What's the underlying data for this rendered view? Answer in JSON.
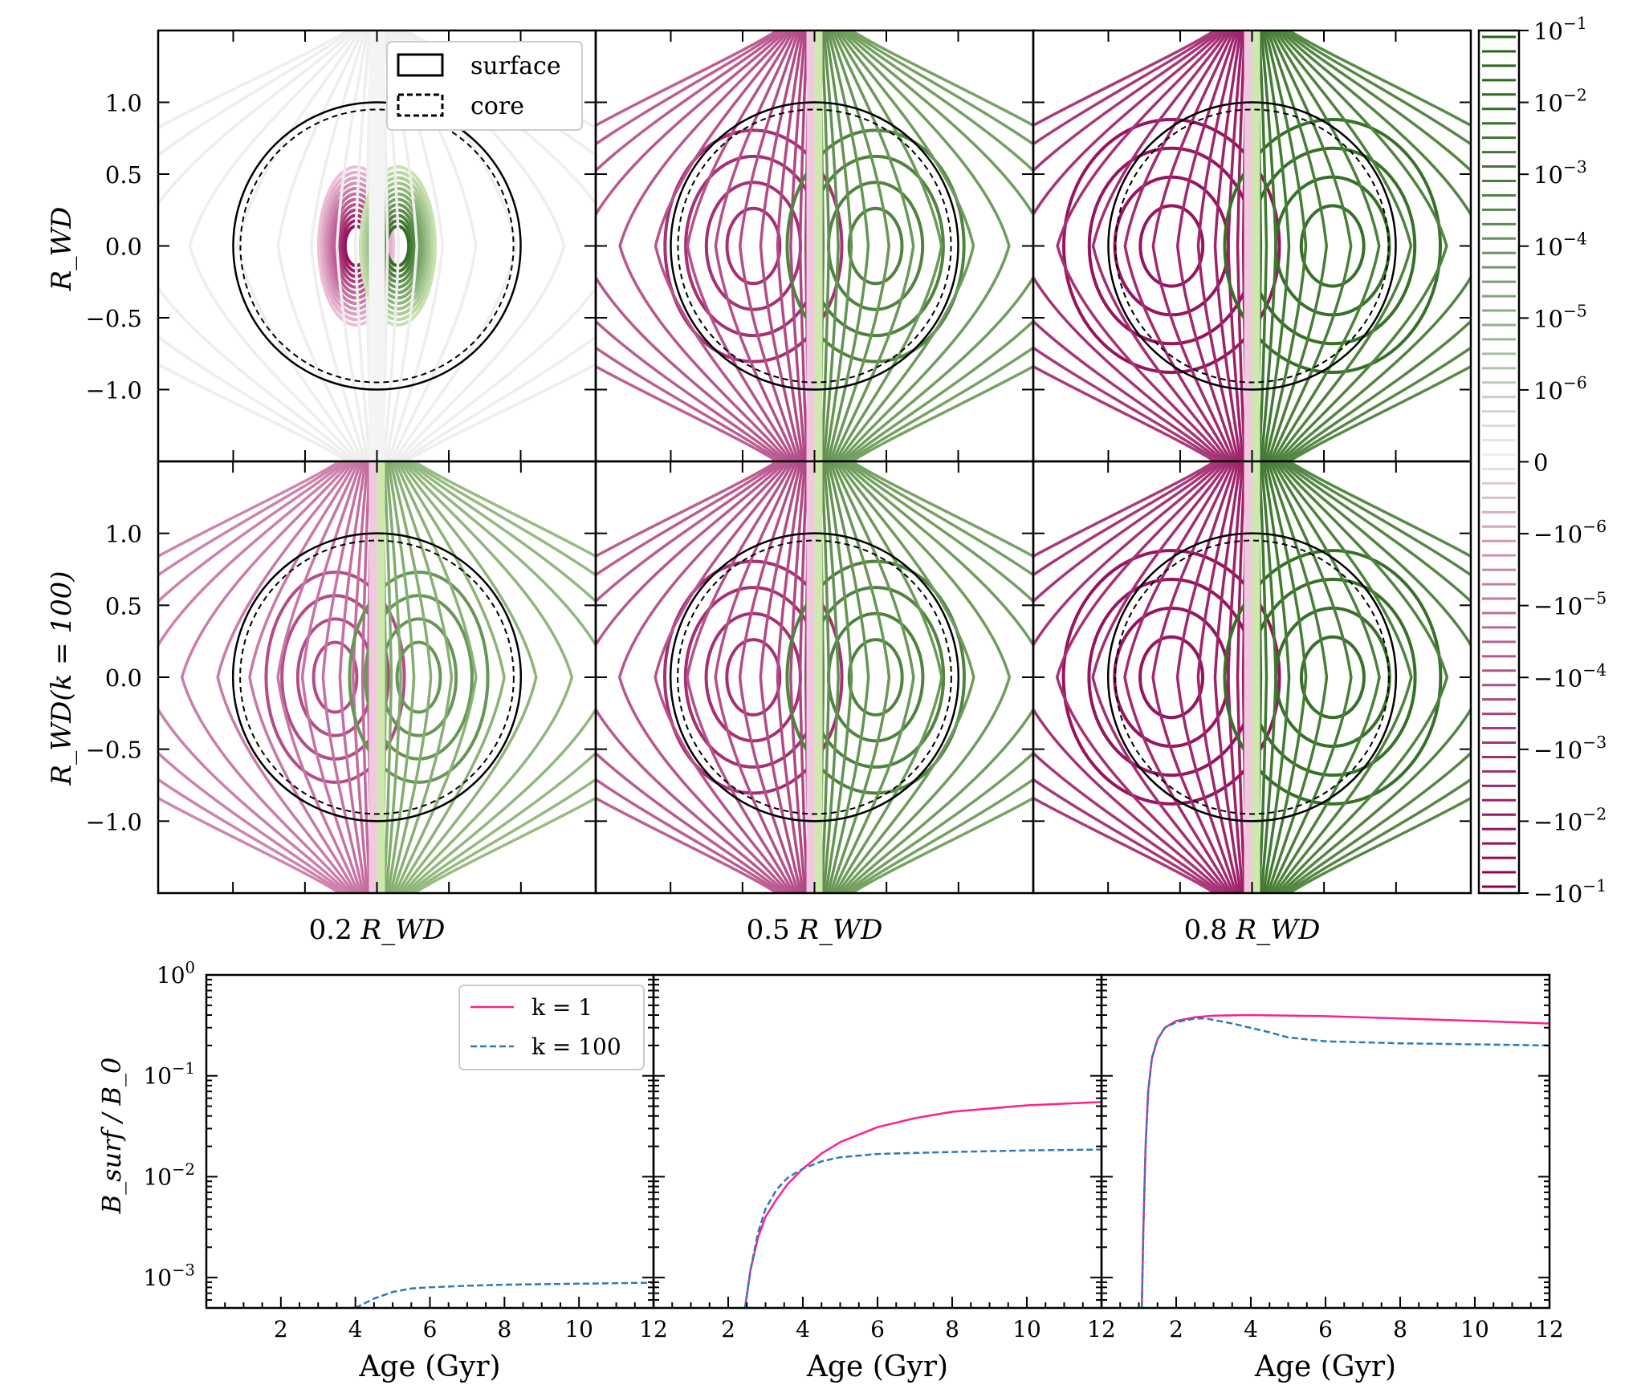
{
  "chart_data": [
    {
      "type": "contour",
      "panel": "top-row",
      "ylabel": "R_WD",
      "yticks": [
        "1.0",
        "0.5",
        "0.0",
        "−0.5",
        "−1.0"
      ],
      "ytick_values": [
        1.0,
        0.5,
        0.0,
        -0.5,
        -1.0
      ],
      "columns": [
        "0.2 R_WD",
        "0.5 R_WD",
        "0.8 R_WD"
      ],
      "legend": [
        "surface",
        "core"
      ],
      "legend_position": "top-right of first panel",
      "surface_radius": 1.0,
      "core_radius": 0.95,
      "xlim": [
        -1.5,
        1.5
      ],
      "ylim": [
        -1.5,
        1.5
      ],
      "field_depth": [
        0.2,
        0.5,
        0.8
      ]
    },
    {
      "type": "contour",
      "panel": "bottom-row",
      "ylabel": "R_WD(k = 100)",
      "yticks": [
        "1.0",
        "0.5",
        "0.0",
        "−0.5",
        "−1.0"
      ],
      "ytick_values": [
        1.0,
        0.5,
        0.0,
        -0.5,
        -1.0
      ],
      "xlabels": [
        "0.2",
        "0.5",
        "0.8"
      ],
      "xlabel_unit": "R_WD",
      "xlim": [
        -1.5,
        1.5
      ],
      "ylim": [
        -1.5,
        1.5
      ],
      "field_depth": [
        0.2,
        0.5,
        0.8
      ]
    },
    {
      "type": "colorbar",
      "colors": {
        "positive": "#276419",
        "negative": "#8e0152",
        "zero": "#f2f2f2"
      },
      "ticks": [
        "10^-1",
        "10^-2",
        "10^-3",
        "10^-4",
        "10^-5",
        "10^-6",
        "0",
        "−10^-6",
        "−10^-5",
        "−10^-4",
        "−10^-3",
        "−10^-2",
        "−10^-1"
      ],
      "tick_values": [
        0.1,
        0.01,
        0.001,
        0.0001,
        1e-05,
        1e-06,
        0,
        -1e-06,
        -1e-05,
        -0.0001,
        -0.001,
        -0.01,
        -0.1
      ]
    },
    {
      "type": "line",
      "panel": "bottom",
      "ylabel": "B_surf / B_0",
      "yscale": "log",
      "ylim": [
        0.0005,
        1
      ],
      "yticks": [
        "10^0",
        "10^-1",
        "10^-2",
        "10^-3"
      ],
      "xlabel": "Age (Gyr)",
      "xlim": [
        0,
        12
      ],
      "xticks": [
        2,
        4,
        6,
        8,
        10,
        12
      ],
      "legend_position": "top-right of first panel",
      "subplots": [
        {
          "series": [
            {
              "name": "k = 1",
              "color": "#ff1f8e",
              "style": "solid",
              "x": [],
              "y": []
            },
            {
              "name": "k = 100",
              "color": "#2b7bba",
              "style": "dashed",
              "x": [
                4.0,
                4.5,
                5.0,
                5.5,
                6.0,
                7.0,
                8.0,
                10.0,
                12.0
              ],
              "y": [
                0.0005,
                0.00062,
                0.00072,
                0.00078,
                0.0008,
                0.00083,
                0.00085,
                0.00087,
                0.00089
              ]
            }
          ]
        },
        {
          "series": [
            {
              "name": "k = 1",
              "color": "#ff1f8e",
              "style": "solid",
              "x": [
                2.45,
                2.6,
                2.8,
                3.0,
                3.3,
                3.6,
                4.0,
                4.5,
                5.0,
                6.0,
                7.0,
                8.0,
                10.0,
                12.0
              ],
              "y": [
                0.0005,
                0.0012,
                0.0025,
                0.004,
                0.006,
                0.0085,
                0.012,
                0.017,
                0.022,
                0.031,
                0.038,
                0.044,
                0.051,
                0.055
              ]
            },
            {
              "name": "k = 100",
              "color": "#2b7bba",
              "style": "dashed",
              "x": [
                2.45,
                2.6,
                2.8,
                3.0,
                3.3,
                3.6,
                4.0,
                4.5,
                5.0,
                6.0,
                8.0,
                10.0,
                12.0
              ],
              "y": [
                0.0005,
                0.0012,
                0.0028,
                0.0048,
                0.0075,
                0.0098,
                0.012,
                0.0142,
                0.0156,
                0.0168,
                0.0176,
                0.0182,
                0.0186
              ]
            }
          ]
        },
        {
          "series": [
            {
              "name": "k = 1",
              "color": "#ff1f8e",
              "style": "solid",
              "x": [
                1.08,
                1.12,
                1.18,
                1.25,
                1.35,
                1.5,
                1.7,
                2.0,
                2.5,
                3.0,
                4.0,
                6.0,
                8.0,
                10.0,
                12.0
              ],
              "y": [
                0.0005,
                0.003,
                0.02,
                0.07,
                0.15,
                0.23,
                0.3,
                0.35,
                0.38,
                0.395,
                0.4,
                0.39,
                0.37,
                0.35,
                0.33
              ]
            },
            {
              "name": "k = 100",
              "color": "#2b7bba",
              "style": "dashed",
              "x": [
                1.08,
                1.12,
                1.18,
                1.25,
                1.35,
                1.5,
                1.7,
                2.0,
                2.5,
                2.8,
                3.5,
                4.5,
                5.0,
                6.0,
                8.0,
                10.0,
                12.0
              ],
              "y": [
                0.0005,
                0.003,
                0.02,
                0.07,
                0.15,
                0.23,
                0.3,
                0.34,
                0.37,
                0.37,
                0.33,
                0.27,
                0.24,
                0.22,
                0.21,
                0.205,
                0.2
              ]
            }
          ]
        }
      ]
    }
  ]
}
